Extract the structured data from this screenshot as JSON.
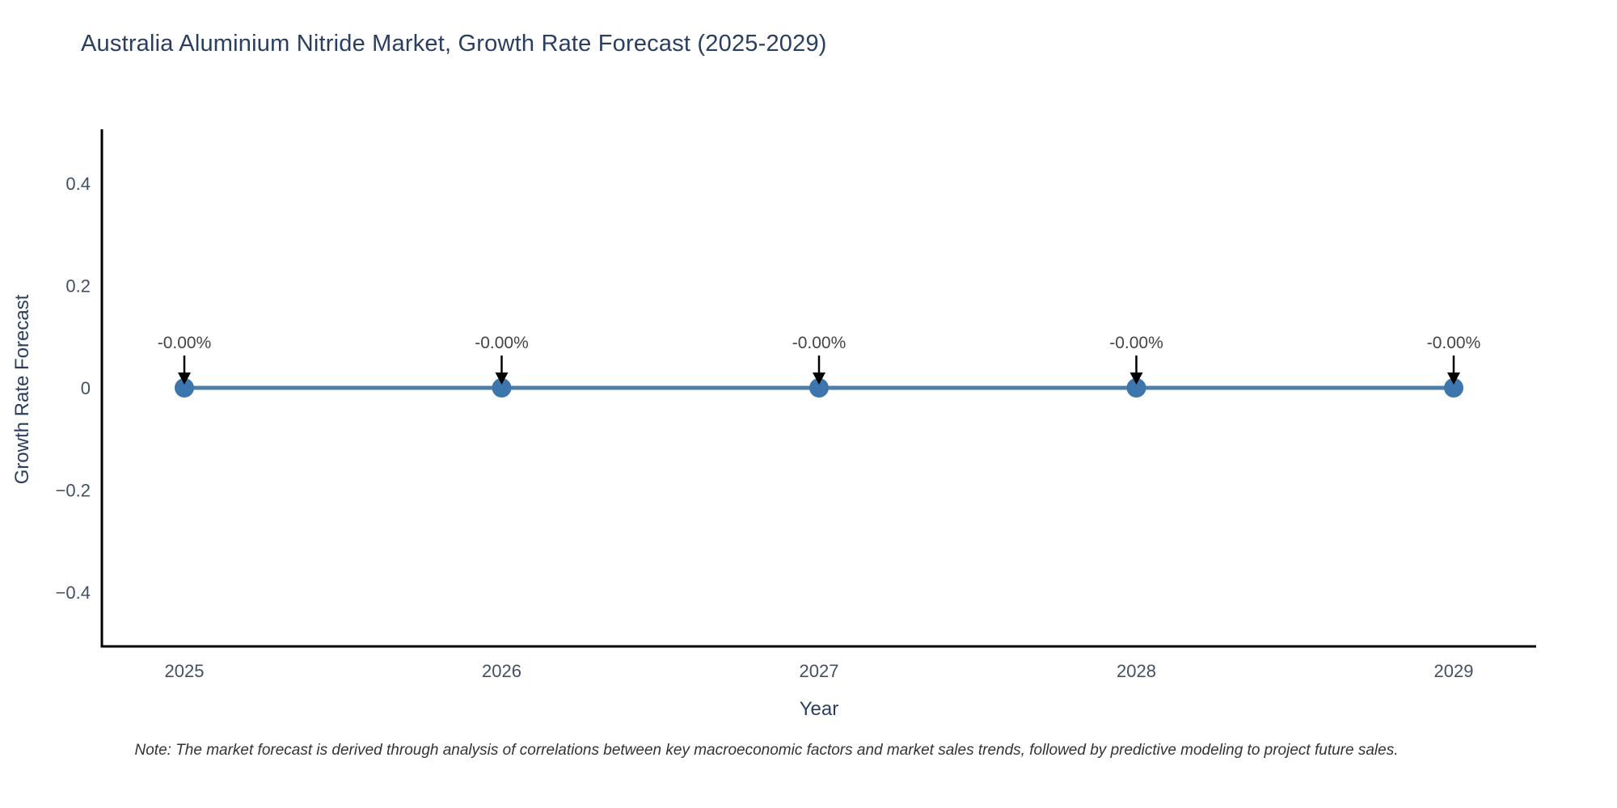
{
  "title": "Australia Aluminium Nitride Market, Growth Rate Forecast (2025-2029)",
  "note": "Note: The market forecast is derived through analysis of correlations between key macroeconomic factors and market sales trends, followed by predictive modeling to project future sales.",
  "chart_data": {
    "type": "line",
    "title": "Australia Aluminium Nitride Market, Growth Rate Forecast (2025-2029)",
    "xlabel": "Year",
    "ylabel": "Growth Rate Forecast",
    "x": [
      2025,
      2026,
      2027,
      2028,
      2029
    ],
    "values": [
      0,
      0,
      0,
      0,
      0
    ],
    "point_labels": [
      "-0.00%",
      "-0.00%",
      "-0.00%",
      "-0.00%",
      "-0.00%"
    ],
    "xtick_labels": [
      "2025",
      "2026",
      "2027",
      "2028",
      "2029"
    ],
    "yticks": [
      0.4,
      0.2,
      0,
      -0.2,
      -0.4
    ],
    "ytick_labels": [
      "0.4",
      "0.2",
      "0",
      "−0.2",
      "−0.4"
    ],
    "ylim": [
      -0.506,
      0.506
    ],
    "grid": false,
    "legend": "none",
    "annotation": "arrow-down-to-point",
    "colors": {
      "line": "#4d7ea8",
      "marker": "#3d76ad",
      "axis": "#000000",
      "tick_text": "#425062",
      "annotation_text": "#444444",
      "arrow": "#000000",
      "title_text": "#2a3f5f"
    }
  }
}
